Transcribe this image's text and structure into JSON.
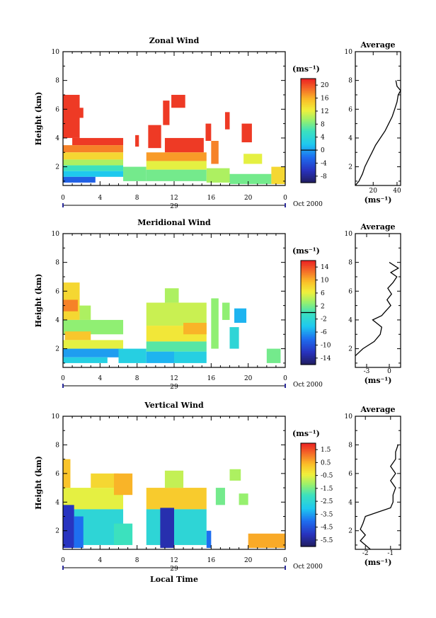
{
  "figure": {
    "xlabel_bottom": "Local Time",
    "date_label": "Oct 2000",
    "day_label": "29"
  },
  "chart_data": [
    {
      "type": "heatmap",
      "title": "Zonal Wind",
      "ylabel": "Height (km)",
      "xlabel": "Local Time",
      "x_ticks": [
        "0",
        "4",
        "8",
        "12",
        "16",
        "20",
        "0"
      ],
      "y_ticks": [
        "2",
        "4",
        "6",
        "8",
        "10"
      ],
      "xlim": [
        0,
        24
      ],
      "ylim": [
        0.7,
        10
      ],
      "colorbar": {
        "unit": "(ms⁻¹)",
        "ticks": [
          "20",
          "16",
          "12",
          "8",
          "4",
          "0",
          "-4",
          "-8"
        ],
        "range": [
          -10,
          22
        ],
        "contour": 0
      },
      "regions": [
        {
          "t0": 0,
          "t1": 1.8,
          "h0": 4.0,
          "h1": 7.0,
          "v": 21
        },
        {
          "t0": 1.6,
          "t1": 2.2,
          "h0": 5.4,
          "h1": 6.1,
          "v": 21
        },
        {
          "t0": 1.0,
          "t1": 6.5,
          "h0": 3.5,
          "h1": 4.0,
          "v": 21
        },
        {
          "t0": 7.8,
          "t1": 8.2,
          "h0": 3.4,
          "h1": 4.2,
          "v": 21
        },
        {
          "t0": 9.2,
          "t1": 10.6,
          "h0": 3.3,
          "h1": 4.9,
          "v": 21
        },
        {
          "t0": 10.8,
          "t1": 11.5,
          "h0": 4.9,
          "h1": 6.6,
          "v": 21
        },
        {
          "t0": 11.7,
          "t1": 13.2,
          "h0": 6.1,
          "h1": 7.0,
          "v": 21
        },
        {
          "t0": 11.0,
          "t1": 15.2,
          "h0": 3.0,
          "h1": 4.0,
          "v": 21
        },
        {
          "t0": 15.4,
          "t1": 16.0,
          "h0": 3.8,
          "h1": 5.0,
          "v": 21
        },
        {
          "t0": 17.5,
          "t1": 18.0,
          "h0": 4.6,
          "h1": 5.8,
          "v": 21
        },
        {
          "t0": 19.3,
          "t1": 20.4,
          "h0": 3.7,
          "h1": 5.0,
          "v": 21
        },
        {
          "t0": 0,
          "t1": 6.5,
          "h0": 3.0,
          "h1": 3.5,
          "v": 18
        },
        {
          "t0": 0,
          "t1": 6.5,
          "h0": 2.5,
          "h1": 3.0,
          "v": 14
        },
        {
          "t0": 0,
          "t1": 6.5,
          "h0": 2.1,
          "h1": 2.5,
          "v": 10
        },
        {
          "t0": 0,
          "t1": 6.5,
          "h0": 1.7,
          "h1": 2.1,
          "v": 6
        },
        {
          "t0": 0,
          "t1": 6.5,
          "h0": 1.3,
          "h1": 1.7,
          "v": 2
        },
        {
          "t0": 0,
          "t1": 3.5,
          "h0": 0.9,
          "h1": 1.3,
          "v": -3
        },
        {
          "t0": 6.5,
          "t1": 9.0,
          "h0": 1.0,
          "h1": 2.0,
          "v": 8
        },
        {
          "t0": 9.0,
          "t1": 15.5,
          "h0": 2.4,
          "h1": 3.0,
          "v": 17
        },
        {
          "t0": 9.0,
          "t1": 15.5,
          "h0": 1.8,
          "h1": 2.4,
          "v": 12
        },
        {
          "t0": 9.0,
          "t1": 15.5,
          "h0": 1.0,
          "h1": 1.8,
          "v": 8
        },
        {
          "t0": 15.5,
          "t1": 18.0,
          "h0": 0.9,
          "h1": 1.9,
          "v": 10
        },
        {
          "t0": 16.0,
          "t1": 16.8,
          "h0": 2.2,
          "h1": 3.8,
          "v": 18
        },
        {
          "t0": 18.0,
          "t1": 22.5,
          "h0": 0.8,
          "h1": 1.5,
          "v": 8
        },
        {
          "t0": 19.5,
          "t1": 21.5,
          "h0": 2.2,
          "h1": 2.9,
          "v": 12
        },
        {
          "t0": 22.5,
          "t1": 24.0,
          "h0": 0.8,
          "h1": 2.0,
          "v": 14
        }
      ],
      "profile": {
        "title": "Average",
        "xlabel": "(ms⁻¹)",
        "x_ticks": [
          20,
          40
        ],
        "xlim": [
          5,
          43
        ],
        "y_ticks": [
          "2",
          "4",
          "6",
          "8",
          "10"
        ],
        "ylim": [
          0.7,
          10
        ],
        "h": [
          0.7,
          1.0,
          1.5,
          2.0,
          2.5,
          3.0,
          3.5,
          4.0,
          4.5,
          5.0,
          5.5,
          6.0,
          6.5,
          7.0,
          7.3,
          7.6,
          8.0
        ],
        "v": [
          5,
          8,
          11,
          13,
          16,
          19,
          22,
          26,
          30,
          33,
          36,
          38,
          40,
          41,
          43,
          40,
          39
        ]
      }
    },
    {
      "type": "heatmap",
      "title": "Meridional Wind",
      "ylabel": "Height (km)",
      "xlabel": "Local Time",
      "x_ticks": [
        "0",
        "4",
        "8",
        "12",
        "16",
        "20",
        "0"
      ],
      "y_ticks": [
        "2",
        "4",
        "6",
        "8",
        "10"
      ],
      "xlim": [
        0,
        24
      ],
      "ylim": [
        0.7,
        10
      ],
      "colorbar": {
        "unit": "(ms⁻¹)",
        "ticks": [
          "14",
          "10",
          "6",
          "2",
          "-2",
          "-6",
          "-10",
          "-14"
        ],
        "range": [
          -16,
          16
        ],
        "contour": 0
      },
      "regions": [
        {
          "t0": 0,
          "t1": 1.8,
          "h0": 4.0,
          "h1": 6.6,
          "v": 8
        },
        {
          "t0": 0,
          "t1": 1.6,
          "h0": 4.6,
          "h1": 5.4,
          "v": 12
        },
        {
          "t0": 1.8,
          "t1": 3.0,
          "h0": 4.0,
          "h1": 5.0,
          "v": 4
        },
        {
          "t0": 0,
          "t1": 6.5,
          "h0": 3.0,
          "h1": 4.0,
          "v": 3
        },
        {
          "t0": 0.2,
          "t1": 3.0,
          "h0": 2.6,
          "h1": 3.2,
          "v": 9
        },
        {
          "t0": 0,
          "t1": 6.5,
          "h0": 2.0,
          "h1": 2.6,
          "v": 6
        },
        {
          "t0": 0,
          "t1": 6.5,
          "h0": 1.4,
          "h1": 2.0,
          "v": -6
        },
        {
          "t0": 0,
          "t1": 4.8,
          "h0": 1.0,
          "h1": 1.4,
          "v": -3
        },
        {
          "t0": 6.0,
          "t1": 9.0,
          "h0": 1.0,
          "h1": 2.0,
          "v": -3
        },
        {
          "t0": 9.0,
          "t1": 15.5,
          "h0": 3.6,
          "h1": 5.2,
          "v": 5
        },
        {
          "t0": 11.0,
          "t1": 12.5,
          "h0": 5.2,
          "h1": 6.2,
          "v": 4
        },
        {
          "t0": 9.0,
          "t1": 15.5,
          "h0": 2.5,
          "h1": 3.6,
          "v": 7
        },
        {
          "t0": 13.0,
          "t1": 15.5,
          "h0": 3.0,
          "h1": 3.8,
          "v": 10
        },
        {
          "t0": 9.0,
          "t1": 15.5,
          "h0": 1.8,
          "h1": 2.5,
          "v": 1
        },
        {
          "t0": 9.0,
          "t1": 12.0,
          "h0": 1.0,
          "h1": 1.8,
          "v": -5
        },
        {
          "t0": 12.0,
          "t1": 15.5,
          "h0": 1.0,
          "h1": 1.8,
          "v": -3
        },
        {
          "t0": 16.0,
          "t1": 16.8,
          "h0": 2.0,
          "h1": 5.5,
          "v": 3
        },
        {
          "t0": 17.2,
          "t1": 18.0,
          "h0": 4.0,
          "h1": 5.2,
          "v": 3
        },
        {
          "t0": 18.5,
          "t1": 19.8,
          "h0": 3.8,
          "h1": 4.8,
          "v": -5
        },
        {
          "t0": 18.0,
          "t1": 19.0,
          "h0": 2.0,
          "h1": 3.5,
          "v": -2
        },
        {
          "t0": 22.0,
          "t1": 23.5,
          "h0": 1.0,
          "h1": 2.0,
          "v": 2
        }
      ],
      "profile": {
        "title": "Average",
        "xlabel": "(ms⁻¹)",
        "x_ticks": [
          -3,
          0
        ],
        "xlim": [
          -4.5,
          1.5
        ],
        "y_ticks": [
          "2",
          "4",
          "6",
          "8",
          "10"
        ],
        "ylim": [
          0.7,
          10
        ],
        "h": [
          1.5,
          2.0,
          2.5,
          3.0,
          3.5,
          4.0,
          4.3,
          4.6,
          5.0,
          5.4,
          5.8,
          6.2,
          6.6,
          7.0,
          7.3,
          7.6,
          8.0
        ],
        "v": [
          -4.5,
          -3.5,
          -2.0,
          -1.2,
          -1.0,
          -2.2,
          -1.0,
          -0.5,
          0.2,
          -0.3,
          0.3,
          -0.2,
          0.5,
          1.0,
          0.2,
          1.2,
          0.0
        ]
      }
    },
    {
      "type": "heatmap",
      "title": "Vertical Wind",
      "ylabel": "Height (km)",
      "xlabel": "Local Time",
      "x_ticks": [
        "0",
        "4",
        "8",
        "12",
        "16",
        "20",
        "0"
      ],
      "y_ticks": [
        "2",
        "4",
        "6",
        "8",
        "10"
      ],
      "xlim": [
        0,
        24
      ],
      "ylim": [
        0.7,
        10
      ],
      "colorbar": {
        "unit": "(ms⁻¹)",
        "ticks": [
          "1.5",
          "0.5",
          "-0.5",
          "-1.5",
          "-2.5",
          "-3.5",
          "-4.5",
          "-5.5"
        ],
        "range": [
          -6.0,
          2.0
        ]
      },
      "regions": [
        {
          "t0": 0,
          "t1": 0.8,
          "h0": 5.0,
          "h1": 7.0,
          "v": 0.3
        },
        {
          "t0": 0,
          "t1": 6.5,
          "h0": 3.5,
          "h1": 5.0,
          "v": -0.5
        },
        {
          "t0": 3.0,
          "t1": 6.0,
          "h0": 5.0,
          "h1": 6.0,
          "v": 0.0
        },
        {
          "t0": 0,
          "t1": 6.5,
          "h0": 1.0,
          "h1": 3.5,
          "v": -2.5
        },
        {
          "t0": 0,
          "t1": 1.2,
          "h0": 0.8,
          "h1": 3.8,
          "v": -5.0
        },
        {
          "t0": 1.2,
          "t1": 2.2,
          "h0": 0.8,
          "h1": 3.0,
          "v": -4.0
        },
        {
          "t0": 5.5,
          "t1": 7.5,
          "h0": 4.5,
          "h1": 6.0,
          "v": 0.5
        },
        {
          "t0": 5.5,
          "t1": 7.5,
          "h0": 1.0,
          "h1": 2.5,
          "v": -2.0
        },
        {
          "t0": 9.0,
          "t1": 15.5,
          "h0": 3.5,
          "h1": 5.0,
          "v": 0.2
        },
        {
          "t0": 11.0,
          "t1": 13.0,
          "h0": 5.0,
          "h1": 6.2,
          "v": -0.8
        },
        {
          "t0": 9.0,
          "t1": 15.5,
          "h0": 1.0,
          "h1": 3.5,
          "v": -2.5
        },
        {
          "t0": 10.5,
          "t1": 12.0,
          "h0": 0.8,
          "h1": 3.6,
          "v": -5.2
        },
        {
          "t0": 15.5,
          "t1": 16.0,
          "h0": 0.8,
          "h1": 2.0,
          "v": -4.0
        },
        {
          "t0": 16.5,
          "t1": 17.5,
          "h0": 3.8,
          "h1": 5.0,
          "v": -1.5
        },
        {
          "t0": 18.0,
          "t1": 19.2,
          "h0": 5.5,
          "h1": 6.3,
          "v": -1.0
        },
        {
          "t0": 19.0,
          "t1": 20.0,
          "h0": 3.8,
          "h1": 4.6,
          "v": -1.2
        },
        {
          "t0": 20.0,
          "t1": 24.0,
          "h0": 0.8,
          "h1": 1.8,
          "v": 0.6
        }
      ],
      "profile": {
        "title": "Average",
        "xlabel": "(ms⁻¹)",
        "x_ticks": [
          -2,
          -1
        ],
        "xlim": [
          -2.4,
          -0.6
        ],
        "y_ticks": [
          "2",
          "4",
          "6",
          "8",
          "10"
        ],
        "ylim": [
          0.7,
          10
        ],
        "h": [
          0.7,
          1.0,
          1.3,
          1.7,
          2.1,
          2.5,
          3.0,
          3.3,
          3.6,
          4.0,
          4.5,
          5.0,
          5.5,
          6.0,
          6.5,
          7.0,
          7.5,
          8.0
        ],
        "v": [
          -1.8,
          -2.0,
          -2.2,
          -2.0,
          -2.2,
          -2.1,
          -2.0,
          -1.5,
          -1.0,
          -0.9,
          -0.9,
          -0.8,
          -1.0,
          -0.8,
          -1.0,
          -0.8,
          -0.8,
          -0.7
        ]
      }
    }
  ]
}
